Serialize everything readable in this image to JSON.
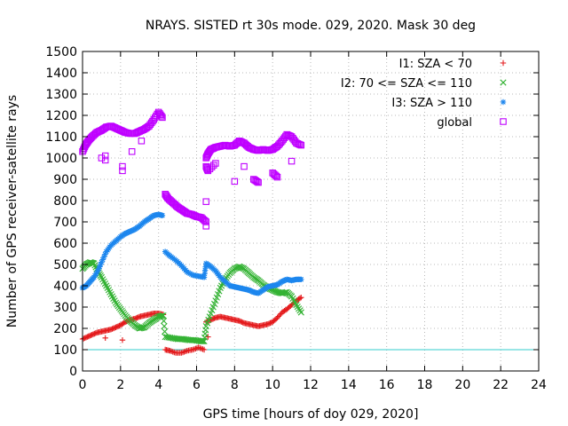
{
  "chart_data": {
    "type": "scatter",
    "title": "NRAYS. SISTED rt 30s mode. 029, 2020. Mask 30 deg",
    "xlabel": "GPS time [hours of doy 029, 2020]",
    "ylabel": "Number of GPS receiver-satellite rays",
    "xlim": [
      0,
      24
    ],
    "ylim": [
      0,
      1500
    ],
    "xticks": [
      0,
      2,
      4,
      6,
      8,
      10,
      12,
      14,
      16,
      18,
      20,
      22,
      24
    ],
    "yticks": [
      0,
      100,
      200,
      300,
      400,
      500,
      600,
      700,
      800,
      900,
      1000,
      1100,
      1200,
      1300,
      1400,
      1500
    ],
    "grid": true,
    "legend_position": "top-right",
    "reference_line": {
      "y": 100,
      "color": "#33cccc"
    },
    "series": [
      {
        "name": "I1: SZA < 70",
        "marker": "plus",
        "color": "#e41a1c",
        "points": [
          [
            0.0,
            150
          ],
          [
            0.25,
            160
          ],
          [
            0.5,
            170
          ],
          [
            0.75,
            180
          ],
          [
            1.0,
            185
          ],
          [
            1.25,
            190
          ],
          [
            1.5,
            195
          ],
          [
            1.75,
            205
          ],
          [
            2.0,
            215
          ],
          [
            2.25,
            230
          ],
          [
            2.5,
            240
          ],
          [
            2.75,
            245
          ],
          [
            3.0,
            255
          ],
          [
            3.25,
            260
          ],
          [
            3.5,
            265
          ],
          [
            3.75,
            270
          ],
          [
            4.0,
            270
          ],
          [
            4.25,
            265
          ],
          [
            4.35,
            100
          ],
          [
            4.6,
            95
          ],
          [
            4.9,
            85
          ],
          [
            5.2,
            85
          ],
          [
            5.5,
            95
          ],
          [
            5.8,
            100
          ],
          [
            6.1,
            110
          ],
          [
            6.4,
            100
          ],
          [
            6.5,
            230
          ],
          [
            6.75,
            240
          ],
          [
            7.0,
            250
          ],
          [
            7.25,
            255
          ],
          [
            7.5,
            250
          ],
          [
            7.75,
            245
          ],
          [
            8.0,
            240
          ],
          [
            8.25,
            235
          ],
          [
            8.5,
            225
          ],
          [
            8.75,
            220
          ],
          [
            9.0,
            215
          ],
          [
            9.25,
            210
          ],
          [
            9.5,
            215
          ],
          [
            9.75,
            220
          ],
          [
            10.0,
            230
          ],
          [
            10.25,
            250
          ],
          [
            10.5,
            275
          ],
          [
            10.75,
            290
          ],
          [
            11.0,
            310
          ],
          [
            11.25,
            330
          ],
          [
            11.5,
            345
          ],
          [
            1.2,
            155
          ],
          [
            2.1,
            145
          ],
          [
            6.6,
            160
          ]
        ]
      },
      {
        "name": "I2: 70 <= SZA <= 110",
        "marker": "cross",
        "color": "#33b233",
        "points": [
          [
            0.0,
            480
          ],
          [
            0.2,
            500
          ],
          [
            0.4,
            510
          ],
          [
            0.6,
            505
          ],
          [
            0.8,
            470
          ],
          [
            1.0,
            440
          ],
          [
            1.25,
            400
          ],
          [
            1.5,
            360
          ],
          [
            1.75,
            320
          ],
          [
            2.0,
            290
          ],
          [
            2.25,
            260
          ],
          [
            2.5,
            235
          ],
          [
            2.75,
            215
          ],
          [
            3.0,
            200
          ],
          [
            3.25,
            205
          ],
          [
            3.5,
            225
          ],
          [
            3.75,
            240
          ],
          [
            4.0,
            255
          ],
          [
            4.25,
            260
          ],
          [
            4.35,
            160
          ],
          [
            4.7,
            155
          ],
          [
            5.0,
            150
          ],
          [
            5.3,
            150
          ],
          [
            5.6,
            145
          ],
          [
            5.9,
            145
          ],
          [
            6.2,
            140
          ],
          [
            6.4,
            140
          ],
          [
            6.5,
            210
          ],
          [
            6.75,
            270
          ],
          [
            7.0,
            330
          ],
          [
            7.25,
            390
          ],
          [
            7.5,
            430
          ],
          [
            7.75,
            460
          ],
          [
            8.0,
            480
          ],
          [
            8.25,
            490
          ],
          [
            8.5,
            480
          ],
          [
            8.75,
            460
          ],
          [
            9.0,
            440
          ],
          [
            9.25,
            425
          ],
          [
            9.5,
            405
          ],
          [
            9.75,
            390
          ],
          [
            10.0,
            380
          ],
          [
            10.25,
            370
          ],
          [
            10.5,
            365
          ],
          [
            10.75,
            370
          ],
          [
            11.0,
            350
          ],
          [
            11.25,
            310
          ],
          [
            11.5,
            275
          ]
        ]
      },
      {
        "name": "I3: SZA > 110",
        "marker": "star",
        "color": "#1c86ee",
        "points": [
          [
            0.0,
            390
          ],
          [
            0.2,
            400
          ],
          [
            0.4,
            420
          ],
          [
            0.6,
            440
          ],
          [
            0.8,
            470
          ],
          [
            1.0,
            510
          ],
          [
            1.25,
            560
          ],
          [
            1.5,
            590
          ],
          [
            1.75,
            610
          ],
          [
            2.0,
            630
          ],
          [
            2.25,
            645
          ],
          [
            2.5,
            655
          ],
          [
            2.75,
            665
          ],
          [
            3.0,
            680
          ],
          [
            3.25,
            700
          ],
          [
            3.5,
            715
          ],
          [
            3.75,
            730
          ],
          [
            4.0,
            735
          ],
          [
            4.2,
            730
          ],
          [
            4.35,
            560
          ],
          [
            4.6,
            540
          ],
          [
            4.9,
            520
          ],
          [
            5.2,
            495
          ],
          [
            5.5,
            465
          ],
          [
            5.8,
            450
          ],
          [
            6.1,
            445
          ],
          [
            6.4,
            440
          ],
          [
            6.5,
            505
          ],
          [
            6.75,
            490
          ],
          [
            7.0,
            470
          ],
          [
            7.25,
            440
          ],
          [
            7.5,
            420
          ],
          [
            7.75,
            400
          ],
          [
            8.0,
            395
          ],
          [
            8.25,
            390
          ],
          [
            8.5,
            385
          ],
          [
            8.75,
            380
          ],
          [
            9.0,
            370
          ],
          [
            9.25,
            365
          ],
          [
            9.5,
            380
          ],
          [
            9.75,
            395
          ],
          [
            10.0,
            400
          ],
          [
            10.25,
            405
          ],
          [
            10.5,
            420
          ],
          [
            10.75,
            430
          ],
          [
            11.0,
            425
          ],
          [
            11.25,
            430
          ],
          [
            11.5,
            430
          ]
        ]
      },
      {
        "name": "global",
        "marker": "square",
        "color": "#bf00ff",
        "points": [
          [
            0.0,
            1030
          ],
          [
            0.15,
            1060
          ],
          [
            0.3,
            1080
          ],
          [
            0.5,
            1100
          ],
          [
            0.75,
            1120
          ],
          [
            1.0,
            1130
          ],
          [
            1.25,
            1145
          ],
          [
            1.5,
            1150
          ],
          [
            1.75,
            1140
          ],
          [
            2.0,
            1130
          ],
          [
            2.25,
            1120
          ],
          [
            2.5,
            1115
          ],
          [
            2.75,
            1115
          ],
          [
            3.0,
            1125
          ],
          [
            3.25,
            1135
          ],
          [
            3.5,
            1150
          ],
          [
            3.75,
            1180
          ],
          [
            4.0,
            1215
          ],
          [
            4.2,
            1190
          ],
          [
            1.2,
            1010
          ],
          [
            1.2,
            990
          ],
          [
            2.1,
            960
          ],
          [
            2.1,
            940
          ],
          [
            1.0,
            1000
          ],
          [
            2.6,
            1030
          ],
          [
            3.1,
            1080
          ],
          [
            4.35,
            830
          ],
          [
            4.5,
            810
          ],
          [
            4.75,
            790
          ],
          [
            5.0,
            770
          ],
          [
            5.25,
            755
          ],
          [
            5.5,
            740
          ],
          [
            5.75,
            735
          ],
          [
            6.0,
            725
          ],
          [
            6.25,
            720
          ],
          [
            6.5,
            700
          ],
          [
            6.5,
            680
          ],
          [
            6.5,
            795
          ],
          [
            6.5,
            1000
          ],
          [
            6.6,
            1020
          ],
          [
            6.75,
            1040
          ],
          [
            7.0,
            1050
          ],
          [
            7.25,
            1055
          ],
          [
            7.5,
            1060
          ],
          [
            7.75,
            1055
          ],
          [
            8.0,
            1060
          ],
          [
            8.25,
            1080
          ],
          [
            8.5,
            1070
          ],
          [
            8.75,
            1050
          ],
          [
            9.0,
            1040
          ],
          [
            9.25,
            1035
          ],
          [
            9.5,
            1040
          ],
          [
            9.75,
            1035
          ],
          [
            10.0,
            1040
          ],
          [
            10.25,
            1055
          ],
          [
            10.5,
            1080
          ],
          [
            10.75,
            1110
          ],
          [
            11.0,
            1100
          ],
          [
            11.25,
            1070
          ],
          [
            11.5,
            1060
          ],
          [
            6.5,
            960
          ],
          [
            6.6,
            940
          ],
          [
            7.0,
            975
          ],
          [
            8.0,
            890
          ],
          [
            9.0,
            900
          ],
          [
            9.25,
            885
          ],
          [
            10.0,
            930
          ],
          [
            10.25,
            910
          ],
          [
            11.0,
            985
          ],
          [
            8.5,
            960
          ]
        ]
      }
    ]
  }
}
